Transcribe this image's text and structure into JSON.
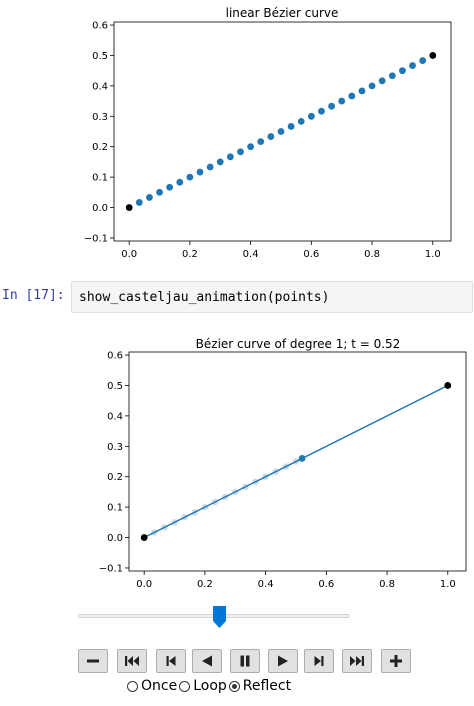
{
  "cell": {
    "prompt": "In [17]:",
    "code": "show_casteljau_animation(points)"
  },
  "plot1": {
    "chart_data": {
      "type": "scatter",
      "title": "linear Bézier curve",
      "xlabel": "",
      "ylabel": "",
      "xlim": [
        -0.05,
        1.06
      ],
      "ylim": [
        -0.11,
        0.61
      ],
      "xticks": [
        "0.0",
        "0.2",
        "0.4",
        "0.6",
        "0.8",
        "1.0"
      ],
      "yticks": [
        "−0.1",
        "0.0",
        "0.1",
        "0.2",
        "0.3",
        "0.4",
        "0.5",
        "0.6"
      ],
      "grid": false,
      "series": [
        {
          "color": "#1f77b4",
          "x": [
            0.0333,
            0.0667,
            0.1,
            0.1333,
            0.1667,
            0.2,
            0.2333,
            0.2667,
            0.3,
            0.3333,
            0.3667,
            0.4,
            0.4333,
            0.4667,
            0.5,
            0.5333,
            0.5667,
            0.6,
            0.6333,
            0.6667,
            0.7,
            0.7333,
            0.7667,
            0.8,
            0.8333,
            0.8667,
            0.9,
            0.9333,
            0.9667
          ],
          "y": [
            0.0167,
            0.0333,
            0.05,
            0.0667,
            0.0833,
            0.1,
            0.1167,
            0.1333,
            0.15,
            0.1667,
            0.1833,
            0.2,
            0.2167,
            0.2333,
            0.25,
            0.2667,
            0.2833,
            0.3,
            0.3167,
            0.3333,
            0.35,
            0.3667,
            0.3833,
            0.4,
            0.4167,
            0.4333,
            0.45,
            0.4667,
            0.4833
          ]
        },
        {
          "color": "#000000",
          "x": [
            0.0,
            1.0
          ],
          "y": [
            0.0,
            0.5
          ]
        }
      ]
    }
  },
  "plot2": {
    "chart_data": {
      "type": "line",
      "title": "Bézier curve of degree 1; t = 0.52",
      "xlabel": "",
      "ylabel": "",
      "xlim": [
        -0.05,
        1.06
      ],
      "ylim": [
        -0.11,
        0.61
      ],
      "xticks": [
        "0.0",
        "0.2",
        "0.4",
        "0.6",
        "0.8",
        "1.0"
      ],
      "yticks": [
        "−0.1",
        "0.0",
        "0.1",
        "0.2",
        "0.3",
        "0.4",
        "0.5",
        "0.6"
      ],
      "grid": false,
      "t": 0.52,
      "control_line": {
        "color": "#1f77b4",
        "x": [
          0.0,
          1.0
        ],
        "y": [
          0.0,
          0.5
        ]
      },
      "control_points": {
        "color": "#000000",
        "x": [
          0.0,
          1.0
        ],
        "y": [
          0.0,
          0.5
        ]
      },
      "current_point": {
        "color": "#1f77b4",
        "x": 0.52,
        "y": 0.26
      },
      "trace": {
        "color": "#a7bfd6",
        "x": [
          0.0333,
          0.0667,
          0.1,
          0.1333,
          0.1667,
          0.2,
          0.2333,
          0.2667,
          0.3,
          0.3333,
          0.3667,
          0.4,
          0.4333,
          0.4667,
          0.5
        ],
        "y": [
          0.0167,
          0.0333,
          0.05,
          0.0667,
          0.0833,
          0.1,
          0.1167,
          0.1333,
          0.15,
          0.1667,
          0.1833,
          0.2,
          0.2167,
          0.2333,
          0.25
        ]
      }
    }
  },
  "slider": {
    "value_fraction": 0.52,
    "accent": "#0078d7"
  },
  "controls": {
    "buttons": [
      {
        "name": "slower-button",
        "icon": "minus-icon"
      },
      {
        "name": "first-frame-button",
        "icon": "skip-to-start-icon"
      },
      {
        "name": "previous-frame-button",
        "icon": "step-back-icon"
      },
      {
        "name": "play-reverse-button",
        "icon": "play-reverse-icon"
      },
      {
        "name": "pause-button",
        "icon": "pause-icon"
      },
      {
        "name": "play-button",
        "icon": "play-icon"
      },
      {
        "name": "next-frame-button",
        "icon": "step-forward-icon"
      },
      {
        "name": "last-frame-button",
        "icon": "skip-to-end-icon"
      },
      {
        "name": "faster-button",
        "icon": "plus-icon"
      }
    ],
    "radio_options": [
      {
        "label": "Once",
        "checked": false
      },
      {
        "label": "Loop",
        "checked": false
      },
      {
        "label": "Reflect",
        "checked": true
      }
    ]
  }
}
